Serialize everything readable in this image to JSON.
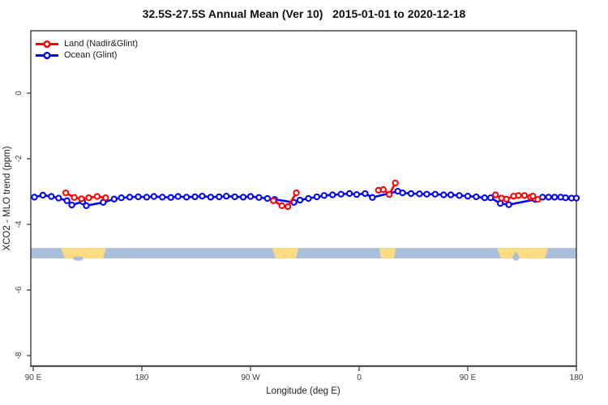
{
  "figure": {
    "title": "32.5S-27.5S Annual Mean (Ver 10)   2015-01-01 to 2020-12-18"
  },
  "legend": {
    "items": [
      {
        "label": "Land (Nadir&Glint)",
        "color": "#ff0000"
      },
      {
        "label": "Ocean (Glint)",
        "color": "#0000ff"
      }
    ]
  },
  "chart_data": {
    "type": "line",
    "title": "32.5S-27.5S Annual Mean (Ver 10)   2015-01-01 to 2020-12-18",
    "xlabel": "Longitude (deg E)",
    "ylabel": "XCO2 - MLO trend (ppm)",
    "xlim": [
      88,
      540
    ],
    "ylim": [
      -8.32,
      1.9
    ],
    "grid": false,
    "legend_position": "top-left",
    "axis_color": "#3d3d3d",
    "x_ticks": [
      {
        "value": 90,
        "label": "90 E"
      },
      {
        "value": 180,
        "label": "180"
      },
      {
        "value": 270,
        "label": "90 W"
      },
      {
        "value": 360,
        "label": "0"
      },
      {
        "value": 450,
        "label": "90 E"
      },
      {
        "value": 540,
        "label": "180"
      }
    ],
    "y_ticks": [
      {
        "value": 0,
        "label": "0"
      },
      {
        "value": -2,
        "label": "-2"
      },
      {
        "value": -4,
        "label": "-4"
      },
      {
        "value": -6,
        "label": "-6"
      },
      {
        "value": -8,
        "label": "-8"
      }
    ],
    "series": [
      {
        "name": "Land (Nadir&Glint)",
        "color": "#ff0000",
        "gap_threshold": 12,
        "points": [
          [
            117,
            -3.04
          ],
          [
            124,
            -3.18
          ],
          [
            130,
            -3.22
          ],
          [
            136,
            -3.19
          ],
          [
            143,
            -3.15
          ],
          [
            150,
            -3.19
          ],
          [
            289,
            -3.28
          ],
          [
            296,
            -3.43
          ],
          [
            301,
            -3.46
          ],
          [
            308,
            -3.04
          ],
          [
            376,
            -2.96
          ],
          [
            380,
            -2.94
          ],
          [
            385,
            -3.09
          ],
          [
            390,
            -2.74
          ],
          [
            473,
            -3.1
          ],
          [
            478,
            -3.2
          ],
          [
            482,
            -3.23
          ],
          [
            488,
            -3.14
          ],
          [
            492,
            -3.12
          ],
          [
            497,
            -3.12
          ],
          [
            502,
            -3.17
          ],
          [
            504,
            -3.14
          ],
          [
            508,
            -3.24
          ]
        ]
      },
      {
        "name": "Ocean (Glint)",
        "color": "#0000ff",
        "gap_threshold": 23,
        "points": [
          [
            91,
            -3.17
          ],
          [
            98,
            -3.11
          ],
          [
            105,
            -3.15
          ],
          [
            111,
            -3.2
          ],
          [
            118,
            -3.28
          ],
          [
            122,
            -3.41
          ],
          [
            131,
            -3.31
          ],
          [
            134,
            -3.43
          ],
          [
            148,
            -3.33
          ],
          [
            157,
            -3.23
          ],
          [
            163,
            -3.19
          ],
          [
            170,
            -3.17
          ],
          [
            177,
            -3.16
          ],
          [
            184,
            -3.17
          ],
          [
            190,
            -3.15
          ],
          [
            197,
            -3.17
          ],
          [
            204,
            -3.18
          ],
          [
            210,
            -3.15
          ],
          [
            217,
            -3.17
          ],
          [
            224,
            -3.16
          ],
          [
            230,
            -3.14
          ],
          [
            237,
            -3.17
          ],
          [
            244,
            -3.16
          ],
          [
            250,
            -3.14
          ],
          [
            257,
            -3.16
          ],
          [
            264,
            -3.17
          ],
          [
            270,
            -3.15
          ],
          [
            277,
            -3.18
          ],
          [
            284,
            -3.21
          ],
          [
            290,
            -3.24
          ],
          [
            306,
            -3.33
          ],
          [
            311,
            -3.26
          ],
          [
            318,
            -3.21
          ],
          [
            325,
            -3.16
          ],
          [
            331,
            -3.12
          ],
          [
            338,
            -3.1
          ],
          [
            345,
            -3.08
          ],
          [
            352,
            -3.06
          ],
          [
            358,
            -3.09
          ],
          [
            365,
            -3.06
          ],
          [
            371,
            -3.18
          ],
          [
            392,
            -2.99
          ],
          [
            396,
            -3.04
          ],
          [
            403,
            -3.06
          ],
          [
            410,
            -3.07
          ],
          [
            416,
            -3.08
          ],
          [
            423,
            -3.08
          ],
          [
            430,
            -3.1
          ],
          [
            436,
            -3.1
          ],
          [
            443,
            -3.12
          ],
          [
            450,
            -3.14
          ],
          [
            457,
            -3.16
          ],
          [
            464,
            -3.19
          ],
          [
            469,
            -3.19
          ],
          [
            477,
            -3.36
          ],
          [
            484,
            -3.4
          ],
          [
            506,
            -3.24
          ],
          [
            512,
            -3.17
          ],
          [
            517,
            -3.17
          ],
          [
            522,
            -3.17
          ],
          [
            527,
            -3.17
          ],
          [
            531,
            -3.19
          ],
          [
            536,
            -3.2
          ],
          [
            540,
            -3.2
          ]
        ]
      }
    ],
    "land_band": {
      "description": "land/ocean strip along longitude",
      "y_top": -4.72,
      "y_bottom": -5.04,
      "ocean_color": "#a9bedb",
      "land_color": "#ffdc82",
      "patches": [
        {
          "name": "australia",
          "polygon": [
            [
              112.8,
              0
            ],
            [
              150.4,
              0
            ],
            [
              147.8,
              1
            ],
            [
              116.2,
              1
            ]
          ]
        },
        {
          "name": "south-america",
          "polygon": [
            [
              288.1,
              0
            ],
            [
              309.6,
              0
            ],
            [
              307.6,
              1
            ],
            [
              290.8,
              1
            ]
          ]
        },
        {
          "name": "south-africa",
          "polygon": [
            [
              376.8,
              0
            ],
            [
              390.2,
              0
            ],
            [
              388.9,
              1
            ],
            [
              378.1,
              1
            ]
          ]
        },
        {
          "name": "australia-2",
          "polygon": [
            [
              474.2,
              0
            ],
            [
              516.5,
              0
            ],
            [
              513.8,
              1
            ],
            [
              493.7,
              1
            ],
            [
              489.8,
              0.3
            ],
            [
              486.3,
              1
            ],
            [
              477.5,
              1
            ]
          ]
        }
      ],
      "under_bumps": [
        {
          "range": [
            122.9,
            131.6
          ]
        },
        {
          "range": [
            487.6,
            492.3
          ]
        }
      ]
    }
  }
}
